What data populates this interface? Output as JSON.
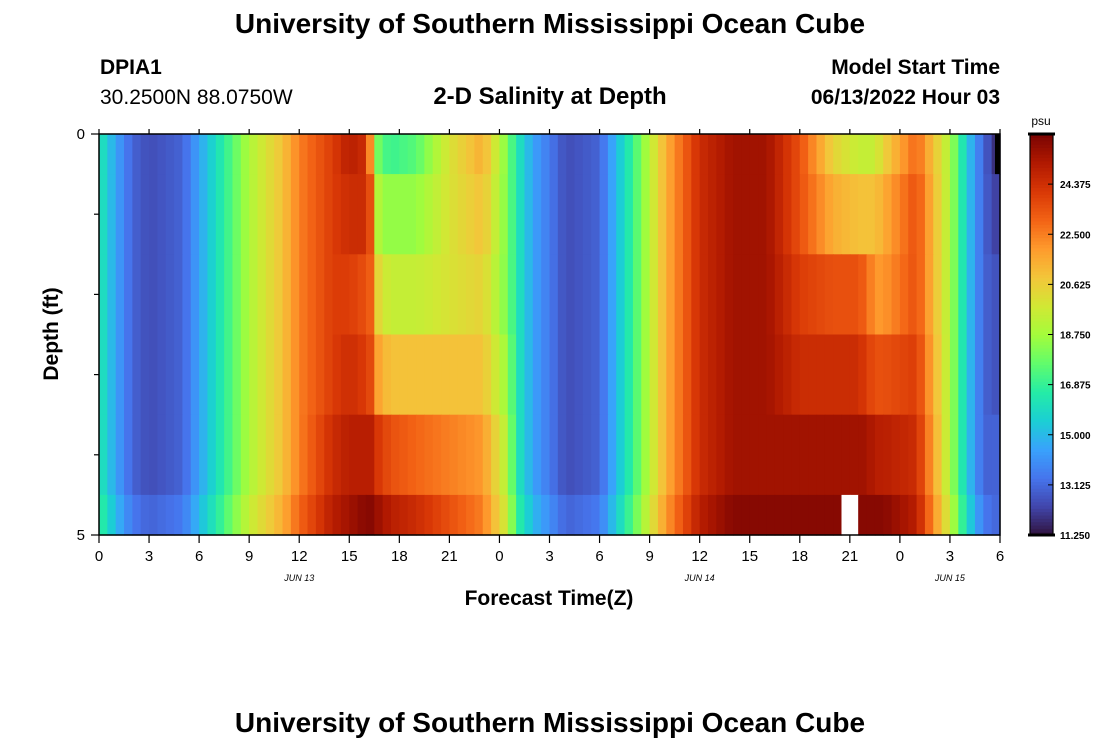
{
  "header": {
    "title": "University of Southern Mississippi Ocean Cube",
    "station_id": "DPIA1",
    "coords": "30.2500N  88.0750W",
    "chart_title": "2-D Salinity at Depth",
    "start_label": "Model Start Time",
    "start_value": "06/13/2022 Hour 03"
  },
  "footer": {
    "title": "University of Southern Mississippi Ocean Cube"
  },
  "colors": {
    "colormap": [
      "#30123b",
      "#4145ab",
      "#4675ed",
      "#39a2fc",
      "#1bcfd4",
      "#24eca6",
      "#61fc6c",
      "#a4fc3b",
      "#d1e834",
      "#f3c63a",
      "#fe9b2d",
      "#f36315",
      "#d93806",
      "#b11901",
      "#7a0402"
    ],
    "missing": "#ffffff",
    "border": "#000000"
  },
  "chart_data": {
    "type": "heatmap",
    "title": "2-D Salinity at Depth",
    "xlabel": "Forecast Time(Z)",
    "ylabel": "Depth (ft)",
    "x_unit": "hours since 06/13/2022 00Z",
    "x_range": [
      0,
      54
    ],
    "x_ticks": [
      "0",
      "3",
      "6",
      "9",
      "12",
      "15",
      "18",
      "21",
      "0",
      "3",
      "6",
      "9",
      "12",
      "15",
      "18",
      "21",
      "0",
      "3",
      "6"
    ],
    "date_labels": [
      {
        "label": "JUN 13",
        "hour": 12
      },
      {
        "label": "JUN 14",
        "hour": 36
      },
      {
        "label": "JUN 15",
        "hour": 51
      }
    ],
    "y_range": [
      0,
      5
    ],
    "y_ticks": [
      "0",
      "5"
    ],
    "y_minor_ticks": 5,
    "depth_layers": [
      0.25,
      1.0,
      2.0,
      3.0,
      4.0,
      4.75
    ],
    "layer_edges": [
      0,
      0.5,
      1.5,
      2.5,
      3.5,
      4.5,
      5
    ],
    "colorbar": {
      "unit": "psu",
      "min": 11.25,
      "max": 26.25,
      "tick_values": [
        11.25,
        13.125,
        15.0,
        16.875,
        18.75,
        20.625,
        22.5,
        24.375
      ],
      "tick_labels": [
        "11.250",
        "13.125",
        "15.000",
        "16.875",
        "18.750",
        "20.625",
        "22.500",
        "24.375"
      ]
    },
    "profile_hours": [
      0,
      1,
      2,
      3,
      5,
      7,
      9,
      11,
      12,
      14,
      15,
      16,
      16.4,
      16.8,
      17.5,
      19,
      21,
      23,
      24.5,
      25,
      26,
      28,
      30,
      32,
      34,
      36,
      38,
      40,
      42,
      44,
      45.5,
      46,
      46.5,
      47,
      49,
      51,
      52,
      53,
      54
    ],
    "layers": [
      {
        "depth": 0.25,
        "values": [
          16.5,
          14.5,
          13.0,
          12.5,
          13.0,
          16.0,
          19.0,
          21.0,
          22.5,
          24.0,
          25.0,
          24.5,
          21.0,
          17.5,
          17.0,
          17.5,
          20.0,
          21.5,
          18.0,
          16.5,
          14.5,
          12.5,
          13.0,
          17.0,
          21.5,
          24.5,
          25.5,
          25.5,
          23.5,
          20.5,
          19.5,
          19.5,
          19.5,
          20.5,
          23.0,
          19.0,
          15.5,
          13.0,
          11.5
        ]
      },
      {
        "depth": 1.0,
        "values": [
          16.5,
          14.5,
          13.0,
          12.5,
          13.0,
          16.0,
          19.0,
          21.0,
          22.5,
          24.0,
          24.5,
          24.5,
          23.0,
          18.5,
          18.5,
          18.5,
          20.0,
          21.0,
          18.0,
          16.5,
          14.5,
          12.5,
          13.0,
          17.0,
          21.5,
          24.5,
          25.5,
          25.5,
          23.5,
          21.5,
          21.0,
          21.0,
          21.0,
          21.5,
          23.5,
          19.0,
          15.5,
          13.0,
          12.0
        ]
      },
      {
        "depth": 2.0,
        "values": [
          16.5,
          14.5,
          13.0,
          12.5,
          13.0,
          16.0,
          19.0,
          21.0,
          22.5,
          24.0,
          24.0,
          23.5,
          23.0,
          20.0,
          19.5,
          19.5,
          20.0,
          20.5,
          18.0,
          16.5,
          14.5,
          12.5,
          13.0,
          17.0,
          21.5,
          24.5,
          25.5,
          25.5,
          24.0,
          23.5,
          23.5,
          23.0,
          22.0,
          22.0,
          23.5,
          19.0,
          15.5,
          13.0,
          12.5
        ]
      },
      {
        "depth": 3.0,
        "values": [
          16.5,
          14.5,
          13.0,
          12.5,
          13.0,
          16.0,
          19.0,
          21.0,
          22.5,
          24.0,
          24.5,
          24.0,
          23.5,
          21.5,
          21.0,
          21.0,
          21.0,
          21.0,
          18.5,
          16.5,
          14.5,
          12.5,
          13.0,
          17.0,
          21.5,
          24.5,
          25.5,
          25.5,
          24.5,
          24.5,
          24.5,
          24.0,
          23.5,
          23.5,
          24.0,
          19.0,
          15.5,
          13.0,
          12.5
        ]
      },
      {
        "depth": 4.0,
        "values": [
          16.5,
          14.5,
          13.0,
          12.5,
          13.0,
          16.0,
          19.0,
          21.0,
          22.5,
          24.5,
          25.0,
          25.0,
          25.0,
          24.0,
          23.5,
          23.0,
          22.5,
          22.0,
          19.0,
          16.5,
          14.5,
          12.5,
          13.0,
          17.0,
          21.5,
          24.5,
          25.5,
          25.5,
          25.5,
          25.5,
          25.5,
          25.5,
          25.0,
          25.0,
          24.5,
          19.0,
          15.5,
          13.0,
          13.0
        ]
      },
      {
        "depth": 4.75,
        "values": [
          17.0,
          15.0,
          13.5,
          13.0,
          13.5,
          16.5,
          19.5,
          21.5,
          23.0,
          25.0,
          25.5,
          26.0,
          26.0,
          25.5,
          25.0,
          24.5,
          23.5,
          22.5,
          19.5,
          17.0,
          15.0,
          13.0,
          13.5,
          17.5,
          22.0,
          25.0,
          26.0,
          26.0,
          26.0,
          26.0,
          null,
          26.0,
          26.0,
          26.0,
          25.0,
          19.5,
          16.0,
          13.5,
          13.0
        ]
      }
    ]
  }
}
